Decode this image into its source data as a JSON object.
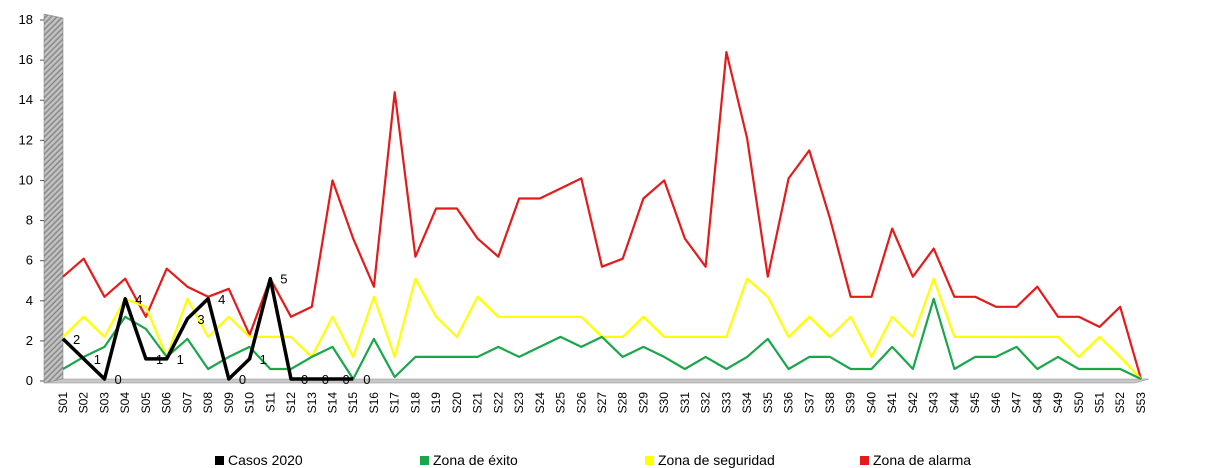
{
  "chart_data": {
    "type": "line",
    "title": "",
    "xlabel": "",
    "ylabel": "",
    "ylim": [
      0,
      18
    ],
    "yticks": [
      0,
      2,
      4,
      6,
      8,
      10,
      12,
      14,
      16,
      18
    ],
    "grid": false,
    "legend_position": "bottom",
    "categories": [
      "S01",
      "S02",
      "S03",
      "S04",
      "S05",
      "S06",
      "S07",
      "S08",
      "S09",
      "S10",
      "S11",
      "S12",
      "S13",
      "S14",
      "S15",
      "S16",
      "S17",
      "S18",
      "S19",
      "S20",
      "S21",
      "S22",
      "S23",
      "S24",
      "S25",
      "S26",
      "S27",
      "S28",
      "S29",
      "S30",
      "S31",
      "S32",
      "S33",
      "S34",
      "S35",
      "S36",
      "S37",
      "S38",
      "S39",
      "S40",
      "S41",
      "S42",
      "S43",
      "S44",
      "S45",
      "S46",
      "S47",
      "S48",
      "S49",
      "S50",
      "S51",
      "S52",
      "S53"
    ],
    "series": [
      {
        "name": "Zona de alarma",
        "color": "#e31b1b",
        "values": [
          5.1,
          6.0,
          4.1,
          5.0,
          3.1,
          5.5,
          4.6,
          4.1,
          4.5,
          2.2,
          5.0,
          3.1,
          3.6,
          9.9,
          7.0,
          4.6,
          14.3,
          6.1,
          8.5,
          8.5,
          7.0,
          6.1,
          9.0,
          9.0,
          9.5,
          10.0,
          5.6,
          6.0,
          9.0,
          9.9,
          7.0,
          5.6,
          16.3,
          12.0,
          5.1,
          10.0,
          11.4,
          8.0,
          4.1,
          4.1,
          7.5,
          5.1,
          6.5,
          4.1,
          4.1,
          3.6,
          3.6,
          4.6,
          3.1,
          3.1,
          2.6,
          3.6,
          0.0
        ]
      },
      {
        "name": "Zona de seguridad",
        "color": "#ffff00",
        "values": [
          2.1,
          3.1,
          2.1,
          4.0,
          3.6,
          1.1,
          4.0,
          2.1,
          3.1,
          2.1,
          2.1,
          2.1,
          1.1,
          3.1,
          1.1,
          4.1,
          1.1,
          5.0,
          3.1,
          2.1,
          4.1,
          3.1,
          3.1,
          3.1,
          3.1,
          3.1,
          2.1,
          2.1,
          3.1,
          2.1,
          2.1,
          2.1,
          2.1,
          5.0,
          4.1,
          2.1,
          3.1,
          2.1,
          3.1,
          1.1,
          3.1,
          2.1,
          5.0,
          2.1,
          2.1,
          2.1,
          2.1,
          2.1,
          2.1,
          1.1,
          2.1,
          1.1,
          0.0
        ]
      },
      {
        "name": "Zona de éxito",
        "color": "#1aa64a",
        "values": [
          0.5,
          1.1,
          1.6,
          3.1,
          2.5,
          1.1,
          2.0,
          0.5,
          1.1,
          1.6,
          0.5,
          0.5,
          1.1,
          1.6,
          0.0,
          2.0,
          0.1,
          1.1,
          1.1,
          1.1,
          1.1,
          1.6,
          1.1,
          1.6,
          2.1,
          1.6,
          2.1,
          1.1,
          1.6,
          1.1,
          0.5,
          1.1,
          0.5,
          1.1,
          2.0,
          0.5,
          1.1,
          1.1,
          0.5,
          0.5,
          1.6,
          0.5,
          4.0,
          0.5,
          1.1,
          1.1,
          1.6,
          0.5,
          1.1,
          0.5,
          0.5,
          0.5,
          0.0
        ]
      },
      {
        "name": "Casos 2020",
        "color": "#000000",
        "values": [
          2,
          1,
          0,
          4,
          1,
          1,
          3,
          4,
          0,
          1,
          5,
          0,
          0,
          0,
          0,
          null,
          null,
          null,
          null,
          null,
          null,
          null,
          null,
          null,
          null,
          null,
          null,
          null,
          null,
          null,
          null,
          null,
          null,
          null,
          null,
          null,
          null,
          null,
          null,
          null,
          null,
          null,
          null,
          null,
          null,
          null,
          null,
          null,
          null,
          null,
          null,
          null,
          null
        ],
        "data_labels": [
          "2",
          "1",
          "0",
          "4",
          "1",
          "1",
          "3",
          "4",
          "0",
          "1",
          "5",
          "0",
          "0",
          "0",
          "0"
        ]
      }
    ]
  },
  "legend": [
    {
      "label": "Casos 2020",
      "color": "#000000"
    },
    {
      "label": "Zona de éxito",
      "color": "#1aa64a"
    },
    {
      "label": "Zona de seguridad",
      "color": "#ffff00"
    },
    {
      "label": "Zona de alarma",
      "color": "#e31b1b"
    }
  ]
}
